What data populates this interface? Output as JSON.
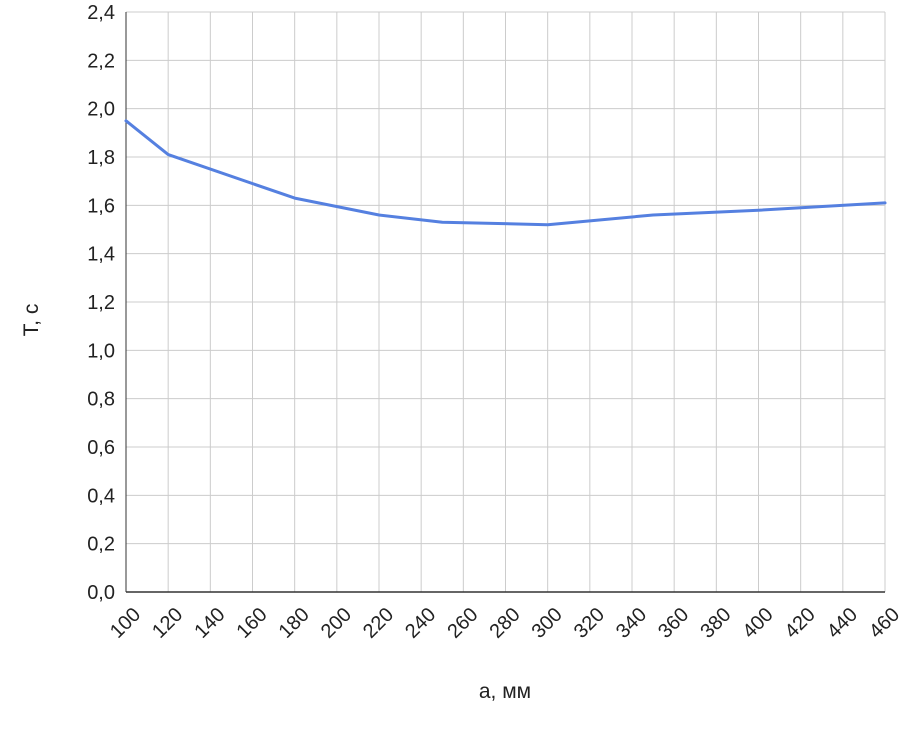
{
  "chart_data": {
    "type": "line",
    "xlabel": "a, мм",
    "ylabel": "T, с",
    "xlim": [
      100,
      460
    ],
    "ylim": [
      0,
      2.4
    ],
    "x_ticks": [
      100,
      120,
      140,
      160,
      180,
      200,
      220,
      240,
      260,
      280,
      300,
      320,
      340,
      360,
      380,
      400,
      420,
      440,
      460
    ],
    "x_tick_labels": [
      "100",
      "120",
      "140",
      "160",
      "180",
      "200",
      "220",
      "240",
      "260",
      "280",
      "300",
      "320",
      "340",
      "360",
      "380",
      "400",
      "420",
      "440",
      "460"
    ],
    "y_ticks": [
      0,
      0.2,
      0.4,
      0.6,
      0.8,
      1.0,
      1.2,
      1.4,
      1.6,
      1.8,
      2.0,
      2.2,
      2.4
    ],
    "y_tick_labels": [
      "0,0",
      "0,2",
      "0,4",
      "0,6",
      "0,8",
      "1,0",
      "1,2",
      "1,4",
      "1,6",
      "1,8",
      "2,0",
      "2,2",
      "2,4"
    ],
    "grid": true,
    "series": [
      {
        "color": "#5580e0",
        "x": [
          100,
          120,
          180,
          220,
          250,
          300,
          350,
          400,
          460
        ],
        "y": [
          1.95,
          1.81,
          1.63,
          1.56,
          1.53,
          1.52,
          1.56,
          1.58,
          1.61
        ]
      }
    ]
  }
}
